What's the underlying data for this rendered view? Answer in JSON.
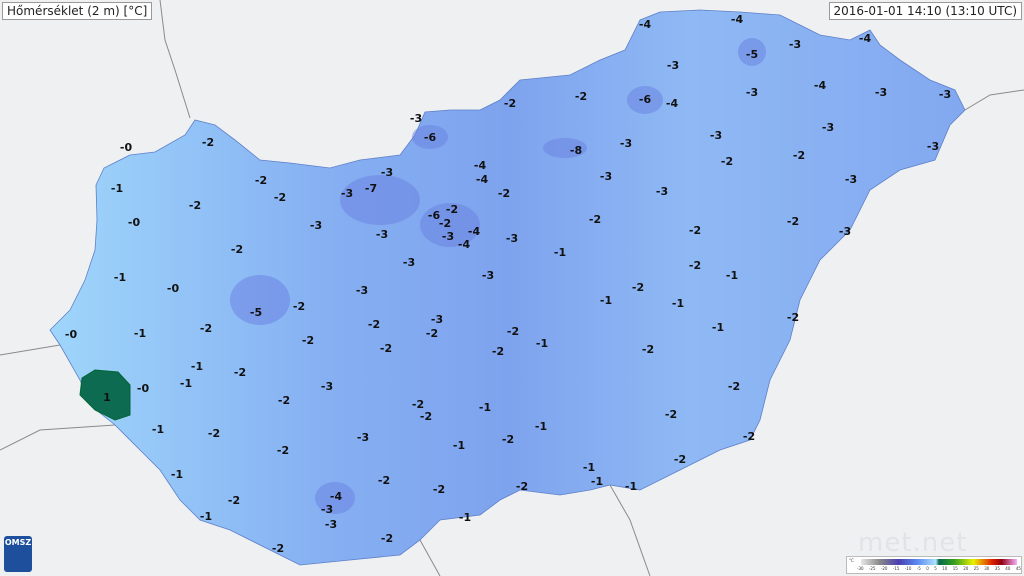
{
  "title": "Hőmérséklet (2 m) [°C]",
  "timestamp": "2016-01-01 14:10 (13:10 UTC)",
  "logo": "OMSZ",
  "brand": "met.net",
  "colors": {
    "land": "#8db6f2",
    "cold": "#6f8fe6",
    "mild": "#9fd3fb",
    "positive": "#0c6b50",
    "background": "#eff0f2"
  },
  "legend": {
    "unit": "°C",
    "ticks": [
      "-30",
      "-25",
      "-20",
      "-15",
      "-10",
      "-5",
      "0",
      "5",
      "10",
      "15",
      "20",
      "25",
      "30",
      "35",
      "40",
      "45"
    ]
  },
  "station_values": [
    "-2",
    "-0",
    "-1",
    "-2",
    "-2",
    "-0",
    "-2",
    "-3",
    "-7",
    "-3",
    "-3",
    "-6",
    "-2",
    "-2",
    "-4",
    "-4",
    "-3",
    "-4",
    "-5",
    "-3",
    "-6",
    "-4",
    "-3",
    "-4",
    "-3",
    "-3",
    "-8",
    "-3",
    "-3",
    "-3",
    "-3",
    "-2",
    "-2",
    "-4",
    "-4",
    "-2",
    "-3",
    "-3",
    "-3",
    "-6",
    "-2",
    "-2",
    "-3",
    "-4",
    "-4",
    "-3",
    "-3",
    "-3",
    "-2",
    "-2",
    "-2",
    "-2",
    "-3",
    "-1",
    "-3",
    "-3",
    "-2",
    "-1",
    "-1",
    "-0",
    "-3",
    "-2",
    "-5",
    "-2",
    "-1",
    "-1",
    "-0",
    "-1",
    "-2",
    "-2",
    "-2",
    "-3",
    "-2",
    "-2",
    "-1",
    "-2",
    "-2",
    "-2",
    "-1",
    "-2",
    "-1",
    "-2",
    "-1",
    "-0",
    "1",
    "-3",
    "-2",
    "-2",
    "-2",
    "-2",
    "-1",
    "-2",
    "-1",
    "-2",
    "-3",
    "-1",
    "-2",
    "-1",
    "-2",
    "-2",
    "-1",
    "-1",
    "-1",
    "-1",
    "-2",
    "-2",
    "-2",
    "-2",
    "-4",
    "-3",
    "-2",
    "-1",
    "-3",
    "-1",
    "-2",
    "-2"
  ]
}
